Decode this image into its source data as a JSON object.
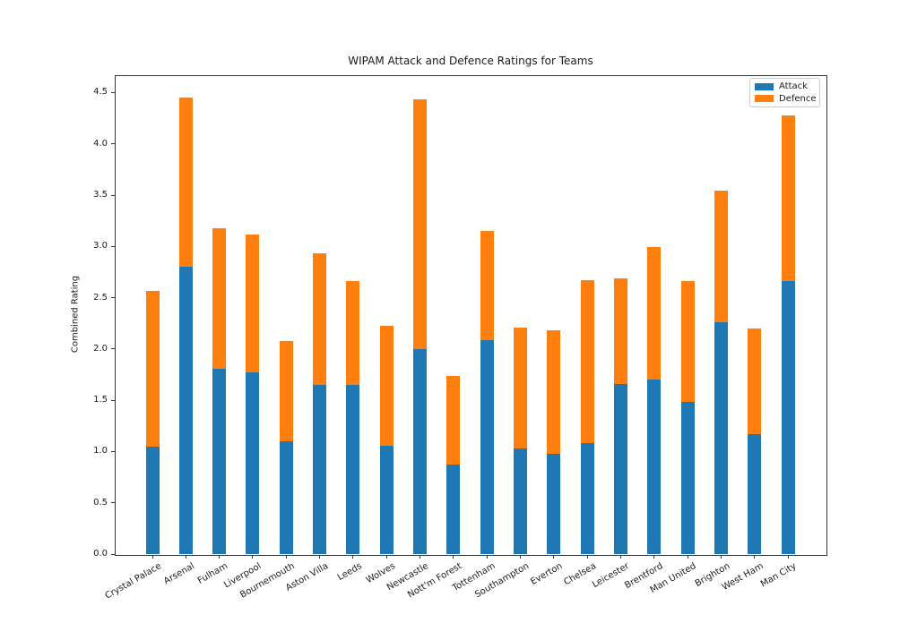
{
  "chart_data": {
    "type": "bar",
    "stacked": true,
    "title": "WIPAM Attack and Defence Ratings for Teams",
    "ylabel": "Combined Rating",
    "xlabel": "",
    "categories": [
      "Crystal Palace",
      "Arsenal",
      "Fulham",
      "Liverpool",
      "Bournemouth",
      "Aston Villa",
      "Leeds",
      "Wolves",
      "Newcastle",
      "Nott'm Forest",
      "Tottenham",
      "Southampton",
      "Everton",
      "Chelsea",
      "Leicester",
      "Brentford",
      "Man United",
      "Brighton",
      "West Ham",
      "Man City"
    ],
    "series": [
      {
        "name": "Attack",
        "color": "#1f77b4",
        "values": [
          1.05,
          2.8,
          1.81,
          1.77,
          1.1,
          1.65,
          1.65,
          1.06,
          2.0,
          0.87,
          2.09,
          1.03,
          0.98,
          1.08,
          1.66,
          1.7,
          1.48,
          2.26,
          1.17,
          2.66
        ]
      },
      {
        "name": "Defence",
        "color": "#ff7f0e",
        "values": [
          1.52,
          1.65,
          1.37,
          1.35,
          0.98,
          1.28,
          1.01,
          1.17,
          2.43,
          0.87,
          1.06,
          1.18,
          1.2,
          1.59,
          1.03,
          1.29,
          1.18,
          1.28,
          1.03,
          1.62
        ]
      }
    ],
    "totals": [
      2.57,
      4.45,
      3.18,
      3.12,
      2.08,
      2.93,
      2.66,
      2.23,
      4.43,
      1.74,
      3.15,
      2.21,
      2.18,
      2.67,
      2.69,
      2.99,
      2.66,
      3.54,
      2.2,
      4.28
    ],
    "ylim": [
      0,
      4.67
    ],
    "yticks": [
      "0.0",
      "0.5",
      "1.0",
      "1.5",
      "2.0",
      "2.5",
      "3.0",
      "3.5",
      "4.0",
      "4.5"
    ],
    "x_tick_rotation_deg": 30,
    "grid": false,
    "legend": {
      "position": "upper right",
      "entries": [
        "Attack",
        "Defence"
      ]
    },
    "background_color": "#ffffff"
  }
}
